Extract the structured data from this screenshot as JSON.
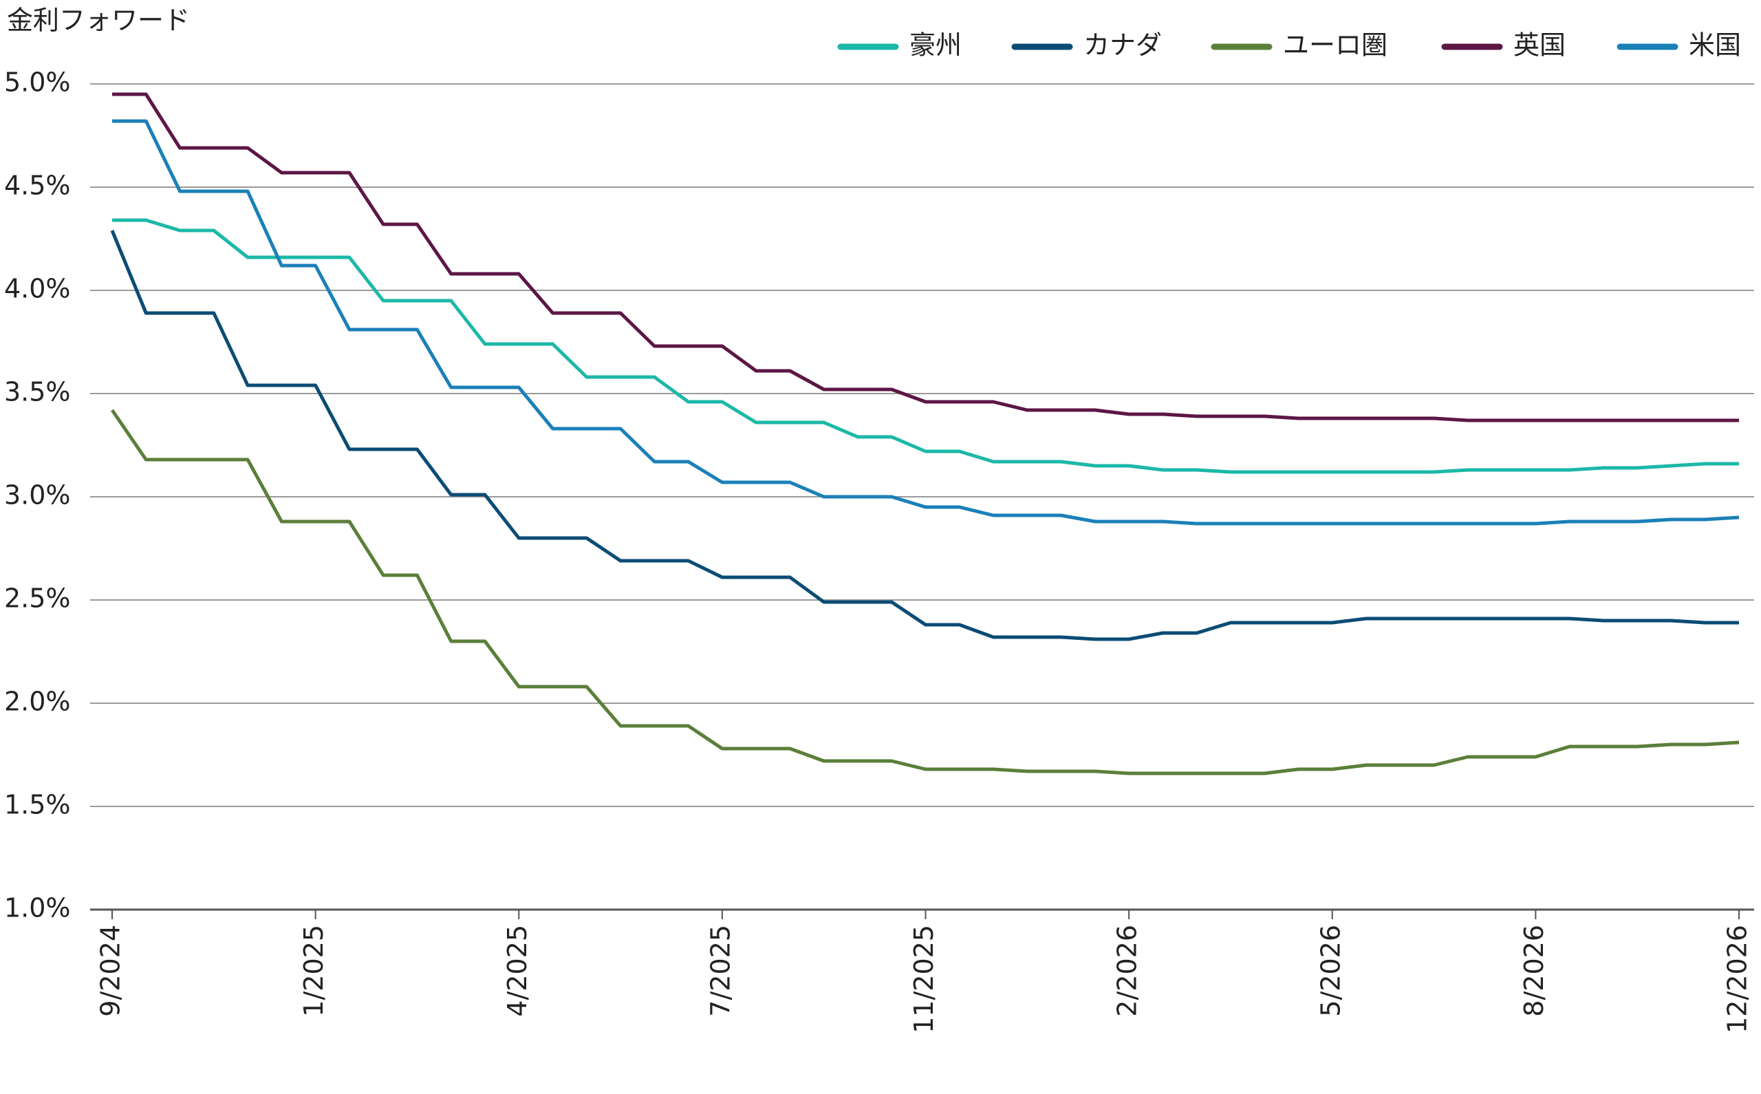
{
  "chart_data": {
    "type": "line",
    "title": "金利フォワード",
    "categories": [
      "9/2024",
      null,
      null,
      null,
      null,
      null,
      "1/2025",
      null,
      null,
      null,
      null,
      null,
      "4/2025",
      null,
      null,
      null,
      null,
      null,
      "7/2025",
      null,
      null,
      null,
      null,
      null,
      "11/2025",
      null,
      null,
      null,
      null,
      null,
      "2/2026",
      null,
      null,
      null,
      null,
      null,
      "5/2026",
      null,
      null,
      null,
      null,
      null,
      "8/2026",
      null,
      null,
      null,
      null,
      null,
      "12/2026"
    ],
    "ylim": [
      1.0,
      5.0
    ],
    "yticks": [
      {
        "value": 1.0,
        "label": "1.0%"
      },
      {
        "value": 1.5,
        "label": "1.5%"
      },
      {
        "value": 2.0,
        "label": "2.0%"
      },
      {
        "value": 2.5,
        "label": "2.5%"
      },
      {
        "value": 3.0,
        "label": "3.0%"
      },
      {
        "value": 3.5,
        "label": "3.5%"
      },
      {
        "value": 4.0,
        "label": "4.0%"
      },
      {
        "value": 4.5,
        "label": "4.5%"
      },
      {
        "value": 5.0,
        "label": "5.0%"
      }
    ],
    "grid": true,
    "series": [
      {
        "name": "豪州",
        "color": "#1cb8a8",
        "values": [
          4.34,
          4.34,
          4.29,
          4.29,
          4.16,
          4.16,
          4.16,
          4.16,
          3.95,
          3.95,
          3.95,
          3.74,
          3.74,
          3.74,
          3.58,
          3.58,
          3.58,
          3.46,
          3.46,
          3.36,
          3.36,
          3.36,
          3.29,
          3.29,
          3.22,
          3.22,
          3.17,
          3.17,
          3.17,
          3.15,
          3.15,
          3.13,
          3.13,
          3.12,
          3.12,
          3.12,
          3.12,
          3.12,
          3.12,
          3.12,
          3.13,
          3.13,
          3.13,
          3.13,
          3.14,
          3.14,
          3.15,
          3.16,
          3.16
        ]
      },
      {
        "name": "カナダ",
        "color": "#0b4c74",
        "values": [
          4.29,
          3.89,
          3.89,
          3.89,
          3.54,
          3.54,
          3.54,
          3.23,
          3.23,
          3.23,
          3.01,
          3.01,
          2.8,
          2.8,
          2.8,
          2.69,
          2.69,
          2.69,
          2.61,
          2.61,
          2.61,
          2.49,
          2.49,
          2.49,
          2.38,
          2.38,
          2.32,
          2.32,
          2.32,
          2.31,
          2.31,
          2.34,
          2.34,
          2.39,
          2.39,
          2.39,
          2.39,
          2.41,
          2.41,
          2.41,
          2.41,
          2.41,
          2.41,
          2.41,
          2.4,
          2.4,
          2.4,
          2.39,
          2.39
        ]
      },
      {
        "name": "ユーロ圏",
        "color": "#5b7f3a",
        "values": [
          3.42,
          3.18,
          3.18,
          3.18,
          3.18,
          2.88,
          2.88,
          2.88,
          2.62,
          2.62,
          2.3,
          2.3,
          2.08,
          2.08,
          2.08,
          1.89,
          1.89,
          1.89,
          1.78,
          1.78,
          1.78,
          1.72,
          1.72,
          1.72,
          1.68,
          1.68,
          1.68,
          1.67,
          1.67,
          1.67,
          1.66,
          1.66,
          1.66,
          1.66,
          1.66,
          1.68,
          1.68,
          1.7,
          1.7,
          1.7,
          1.74,
          1.74,
          1.74,
          1.79,
          1.79,
          1.79,
          1.8,
          1.8,
          1.81
        ]
      },
      {
        "name": "英国",
        "color": "#5c1745",
        "values": [
          4.95,
          4.95,
          4.69,
          4.69,
          4.69,
          4.57,
          4.57,
          4.57,
          4.32,
          4.32,
          4.08,
          4.08,
          4.08,
          3.89,
          3.89,
          3.89,
          3.73,
          3.73,
          3.73,
          3.61,
          3.61,
          3.52,
          3.52,
          3.52,
          3.46,
          3.46,
          3.46,
          3.42,
          3.42,
          3.42,
          3.4,
          3.4,
          3.39,
          3.39,
          3.39,
          3.38,
          3.38,
          3.38,
          3.38,
          3.38,
          3.37,
          3.37,
          3.37,
          3.37,
          3.37,
          3.37,
          3.37,
          3.37,
          3.37
        ]
      },
      {
        "name": "米国",
        "color": "#1b80b8",
        "values": [
          4.82,
          4.82,
          4.48,
          4.48,
          4.48,
          4.12,
          4.12,
          3.81,
          3.81,
          3.81,
          3.53,
          3.53,
          3.53,
          3.33,
          3.33,
          3.33,
          3.17,
          3.17,
          3.07,
          3.07,
          3.07,
          3.0,
          3.0,
          3.0,
          2.95,
          2.95,
          2.91,
          2.91,
          2.91,
          2.88,
          2.88,
          2.88,
          2.87,
          2.87,
          2.87,
          2.87,
          2.87,
          2.87,
          2.87,
          2.87,
          2.87,
          2.87,
          2.87,
          2.88,
          2.88,
          2.88,
          2.89,
          2.89,
          2.9
        ]
      }
    ]
  }
}
